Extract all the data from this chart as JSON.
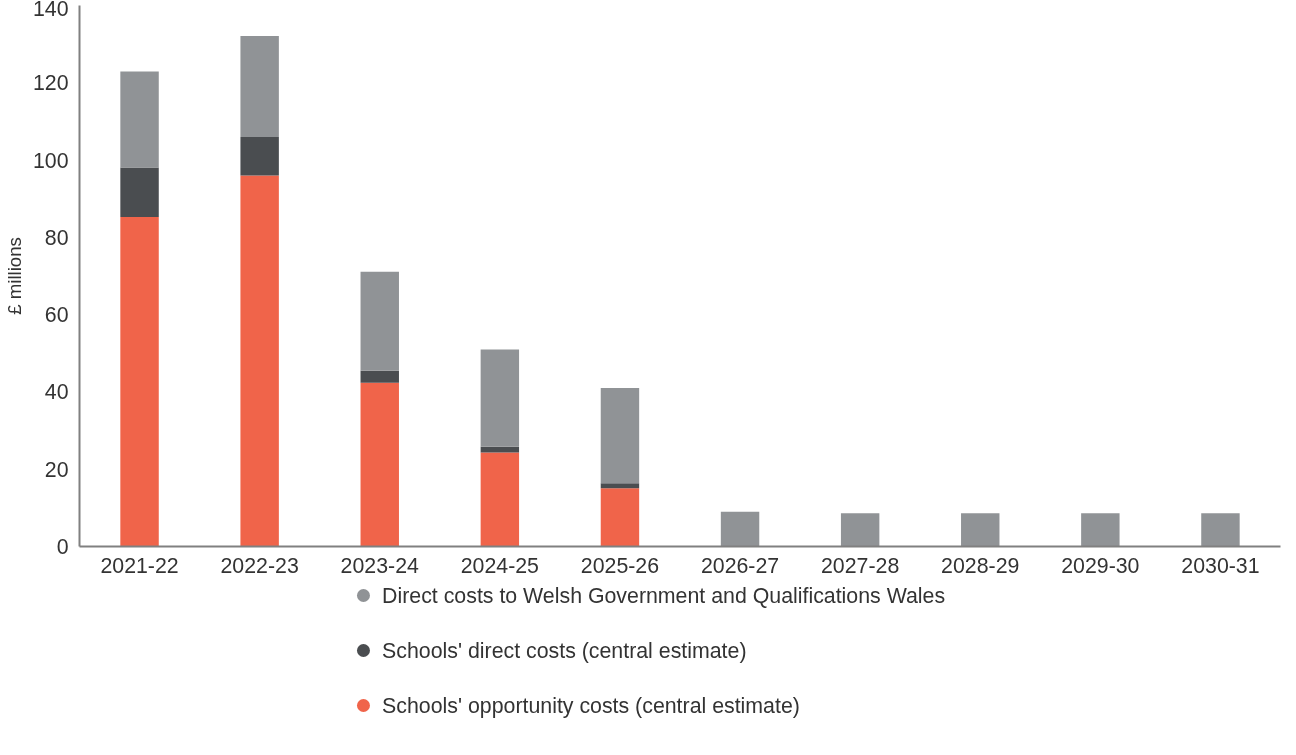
{
  "chart_data": {
    "type": "bar",
    "stacked": true,
    "ylabel": "£ millions",
    "categories": [
      "2021-22",
      "2022-23",
      "2023-24",
      "2024-25",
      "2025-26",
      "2026-27",
      "2027-28",
      "2028-29",
      "2029-30",
      "2030-31"
    ],
    "series": [
      {
        "name": "Schools' opportunity costs (central estimate)",
        "color": "#f0644a",
        "values": [
          85.3,
          96,
          42.4,
          24.3,
          15.1,
          0,
          0,
          0,
          0,
          0
        ]
      },
      {
        "name": "Schools' direct costs (central estimate)",
        "color": "#4a4d50",
        "values": [
          12.8,
          10,
          3.1,
          1.5,
          1.3,
          0,
          0,
          0,
          0,
          0
        ]
      },
      {
        "name": "Direct costs to Welsh Government and Qualifications Wales",
        "color": "#909396",
        "values": [
          24.8,
          26.1,
          25.6,
          25.2,
          24.6,
          9.0,
          8.6,
          8.6,
          8.6,
          8.6
        ]
      }
    ],
    "ylim": [
      0,
      140
    ],
    "yticks": [
      0,
      20,
      40,
      60,
      80,
      100,
      120,
      140
    ],
    "grid": false,
    "legend": "bottom"
  }
}
